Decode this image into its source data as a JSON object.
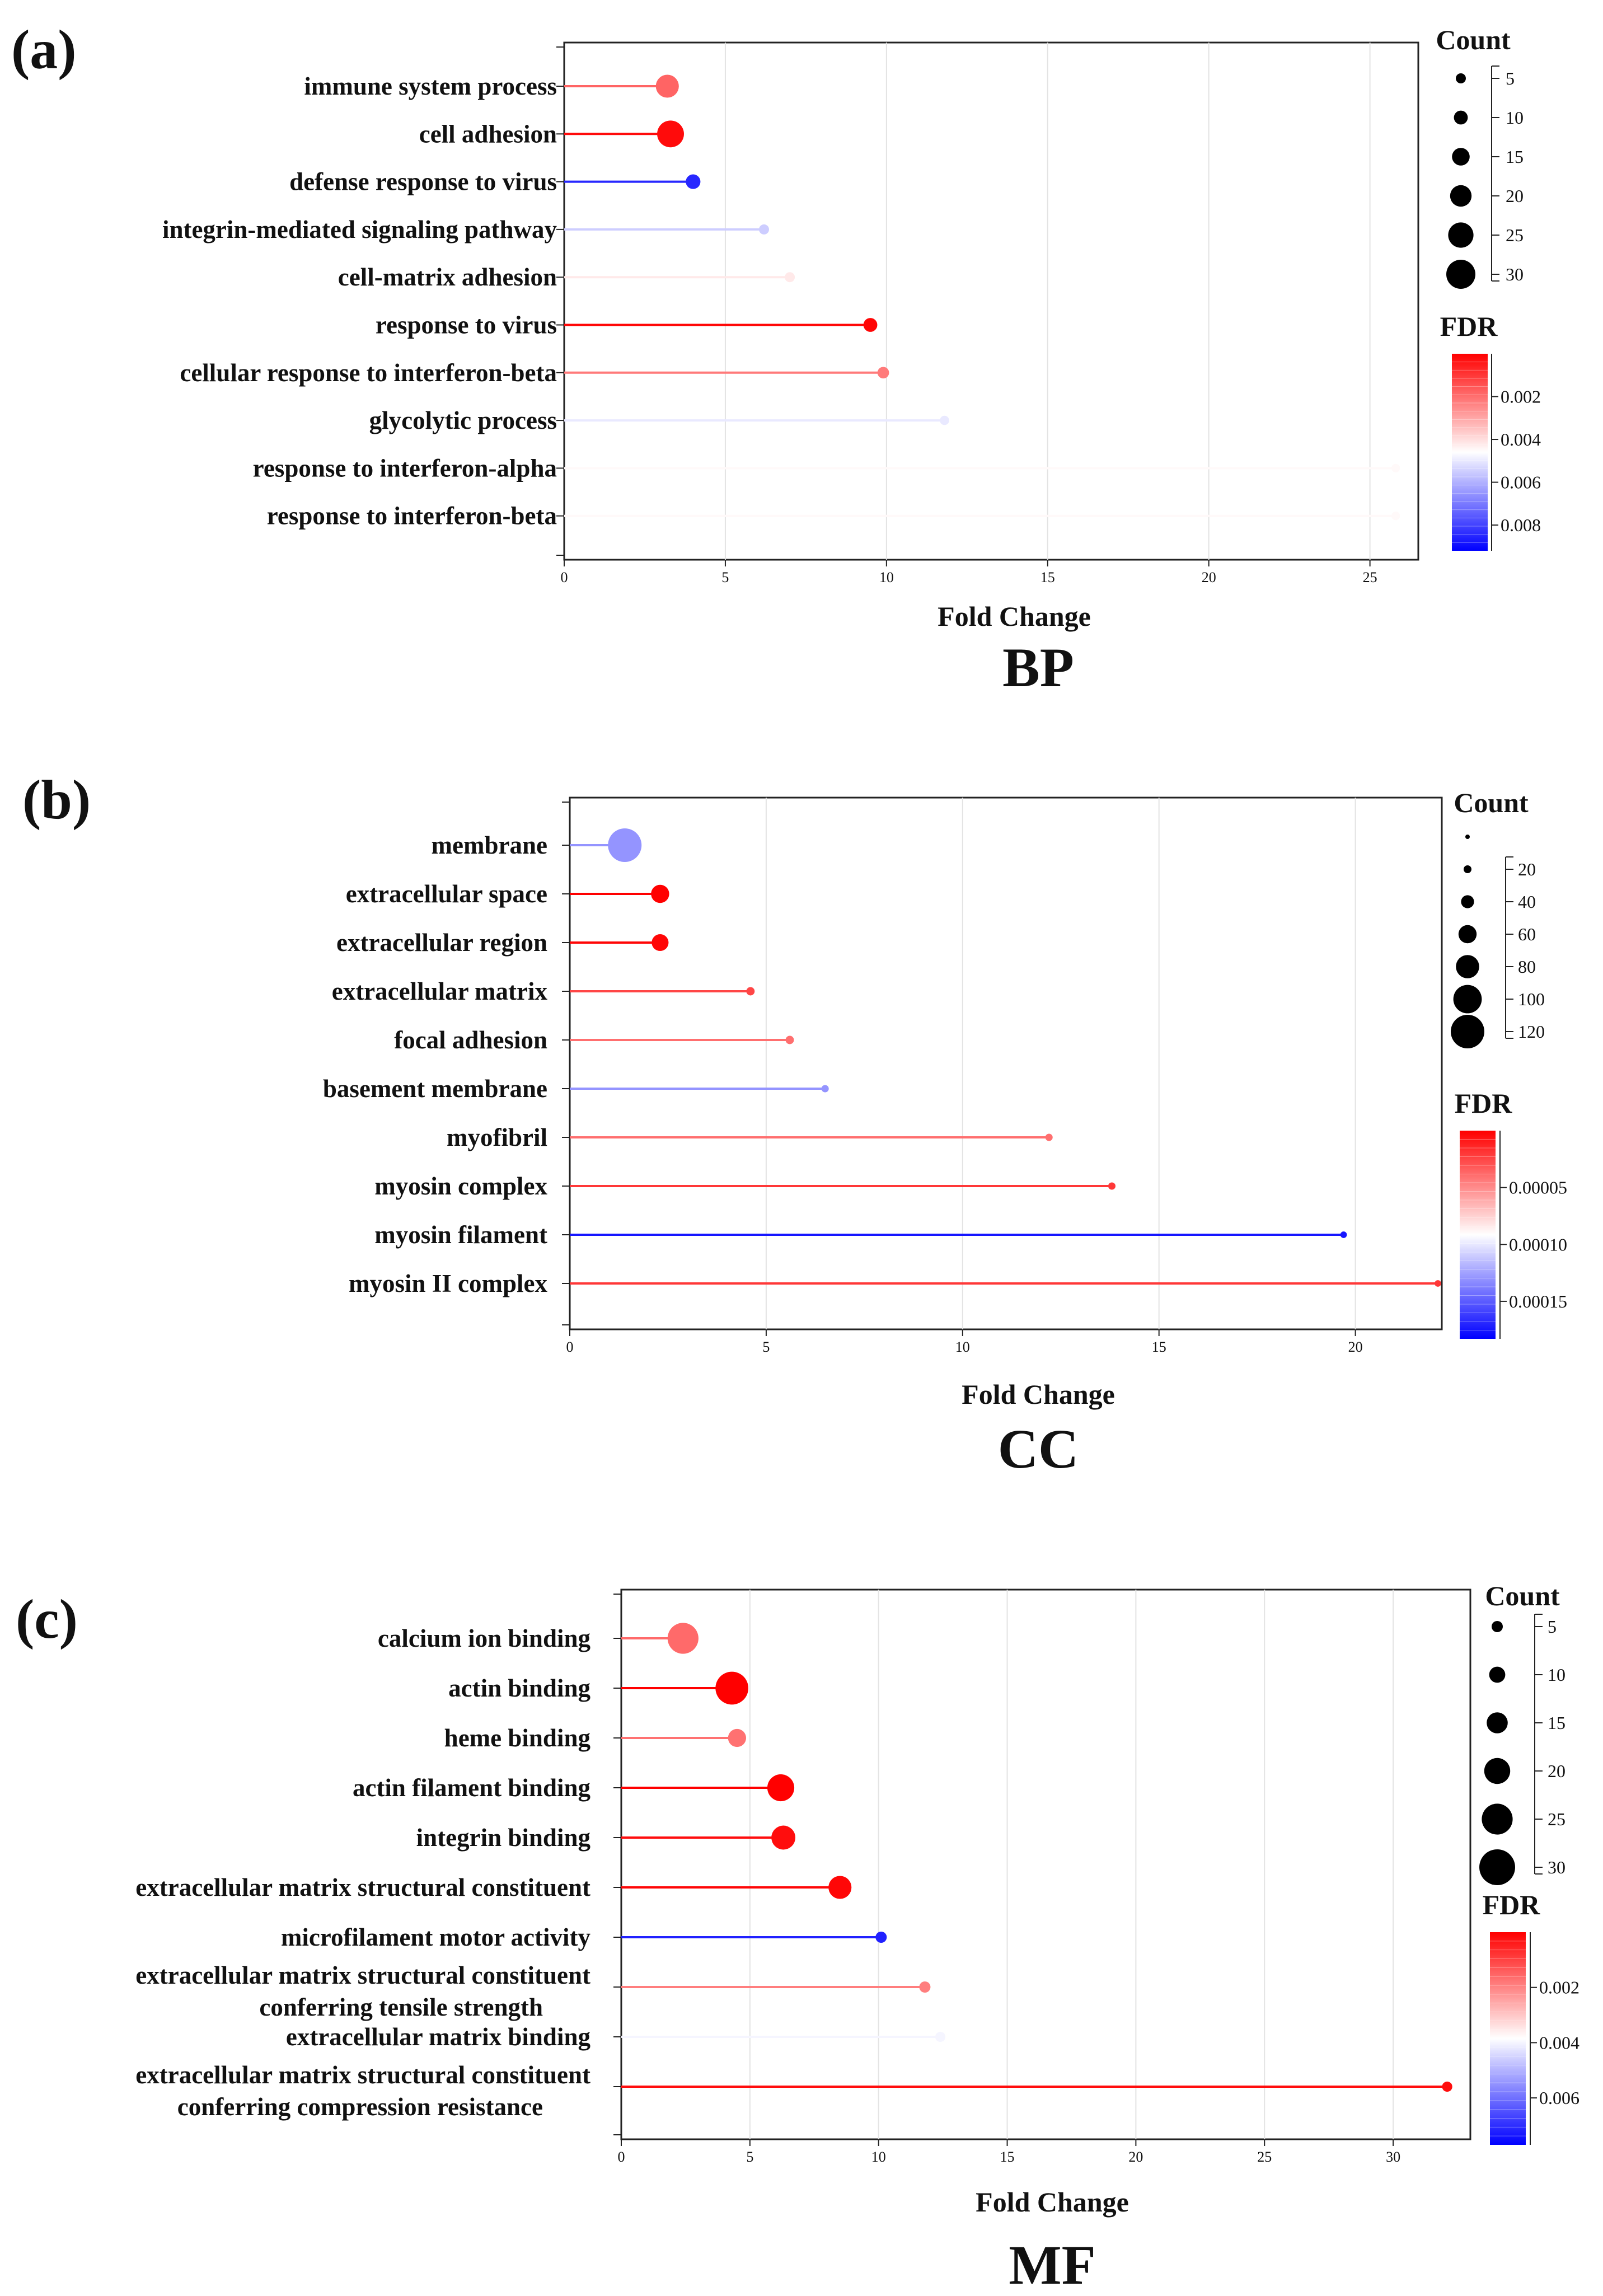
{
  "chart_data": [
    {
      "type": "scatter",
      "panel": "(a)",
      "title": "BP",
      "xlabel": "Fold Change",
      "xlim": [
        0,
        26.5
      ],
      "xticks": [
        "0",
        "5",
        "10",
        "15",
        "20",
        "25"
      ],
      "categories": [
        "immune system process",
        "cell adhesion",
        "defense response to virus",
        "integrin-mediated signaling pathway",
        "cell-matrix adhesion",
        "response to virus",
        "cellular response to interferon-beta",
        "glycolytic process",
        "response to interferon-alpha",
        "response to interferon-beta"
      ],
      "fold_change": [
        3.2,
        3.3,
        4.0,
        6.2,
        7.0,
        9.5,
        9.9,
        11.8,
        25.8,
        25.8
      ],
      "count": [
        22,
        27,
        11,
        5,
        5,
        10,
        7,
        4,
        3,
        3
      ],
      "fdr": [
        0.0018,
        0.0002,
        0.0085,
        0.0055,
        0.0042,
        0.0001,
        0.0022,
        0.005,
        0.0045,
        0.0045
      ],
      "size_legend": {
        "title": "Count",
        "values": [
          5,
          10,
          15,
          20,
          25,
          30
        ]
      },
      "color_legend": {
        "title": "FDR",
        "min": 0,
        "max": 0.0092,
        "ticks": [
          0.002,
          0.004,
          0.006,
          0.008
        ],
        "tick_labels": [
          "0.002",
          "0.004",
          "0.006",
          "0.008"
        ]
      }
    },
    {
      "type": "scatter",
      "panel": "(b)",
      "title": "CC",
      "xlabel": "Fold Change",
      "xlim": [
        0,
        22.2
      ],
      "xticks": [
        "0",
        "5",
        "10",
        "15",
        "20"
      ],
      "categories": [
        "membrane",
        "extracellular space",
        "extracellular region",
        "extracellular matrix",
        "focal adhesion",
        "basement membrane",
        "myofibril",
        "myosin complex",
        "myosin filament",
        "myosin II complex"
      ],
      "fold_change": [
        1.4,
        2.3,
        2.3,
        4.6,
        5.6,
        6.5,
        12.2,
        13.8,
        19.7,
        22.1
      ],
      "count": [
        120,
        60,
        55,
        22,
        22,
        18,
        18,
        18,
        15,
        15
      ],
      "fdr": [
        0.00013,
        0.0,
        2e-06,
        2.5e-05,
        4e-05,
        0.00013,
        4e-05,
        2e-05,
        0.000175,
        2e-05
      ],
      "size_legend": {
        "title": "Count",
        "values": [
          0,
          20,
          40,
          60,
          80,
          100,
          120
        ]
      },
      "color_legend": {
        "title": "FDR",
        "min": 0,
        "max": 0.000183,
        "ticks": [
          5e-05,
          0.0001,
          0.00015
        ],
        "tick_labels": [
          "0.00005",
          "0.00010",
          "0.00015"
        ]
      }
    },
    {
      "type": "scatter",
      "panel": "(c)",
      "title": "MF",
      "xlabel": "Fold Change",
      "xlim": [
        0,
        33
      ],
      "xticks": [
        "0",
        "5",
        "10",
        "15",
        "20",
        "25",
        "30"
      ],
      "categories": [
        "calcium ion binding",
        "actin binding",
        "heme binding",
        "actin filament binding",
        "integrin binding",
        "extracellular matrix structural constituent",
        "microfilament motor activity",
        "extracellular matrix structural constituent\nconferring tensile strength",
        "extracellular matrix binding",
        "extracellular matrix structural constituent\nconferring compression resistance"
      ],
      "fold_change": [
        2.4,
        4.3,
        4.5,
        6.2,
        6.3,
        8.5,
        10.1,
        11.8,
        12.4,
        32.1
      ],
      "count": [
        25,
        27,
        12,
        21,
        18,
        17,
        5,
        5,
        4,
        4
      ],
      "fdr": [
        0.0016,
        0.0,
        0.0017,
        0.0,
        0.0002,
        0.0001,
        0.0072,
        0.0019,
        0.004,
        0.0002
      ],
      "size_legend": {
        "title": "Count",
        "values": [
          5,
          10,
          15,
          20,
          25,
          30
        ]
      },
      "color_legend": {
        "title": "FDR",
        "min": 0,
        "max": 0.0077,
        "ticks": [
          0.002,
          0.004,
          0.006
        ],
        "tick_labels": [
          "0.002",
          "0.004",
          "0.006"
        ]
      }
    }
  ]
}
